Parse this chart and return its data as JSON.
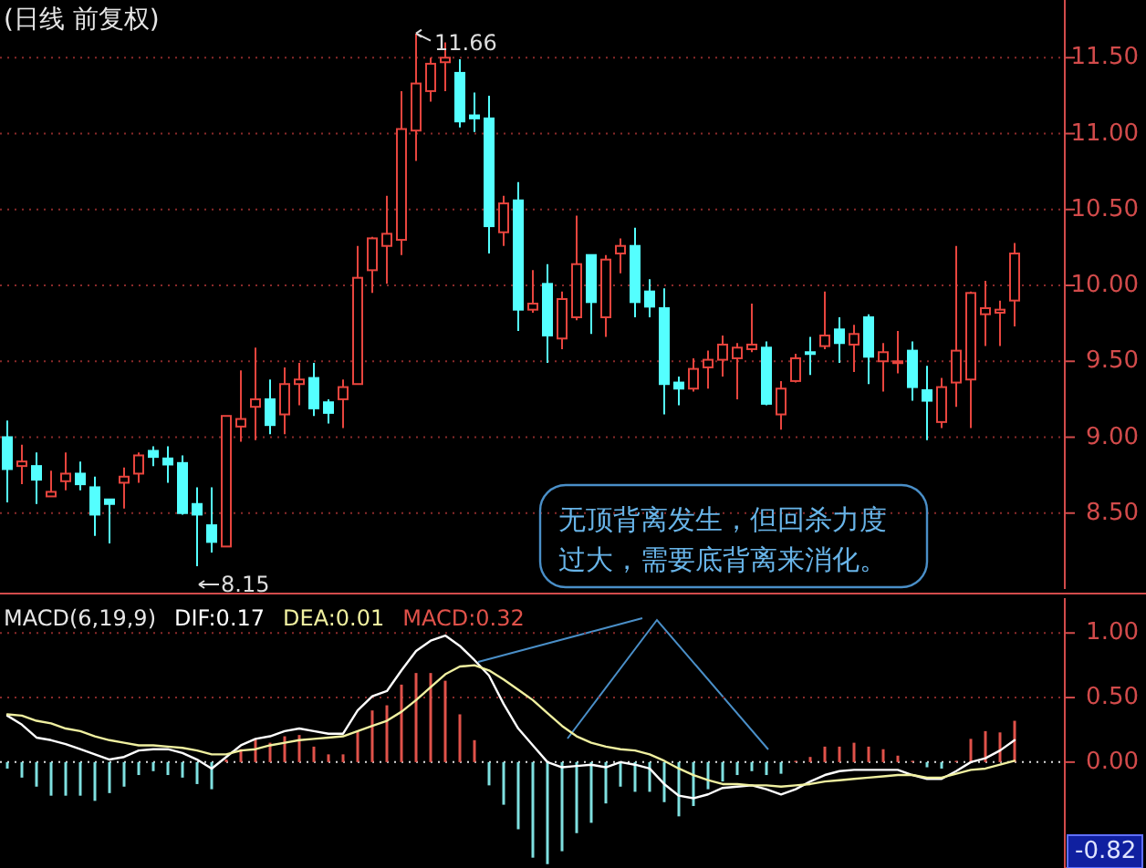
{
  "chart_data": [
    {
      "type": "candlestick",
      "title": "(日线 前复权)",
      "categories": [
        null,
        null,
        null,
        null,
        null,
        null,
        null,
        null,
        null,
        null,
        null,
        null,
        null,
        null,
        null,
        null,
        null,
        null,
        null,
        null,
        null,
        null,
        null,
        null,
        null,
        null,
        null,
        null,
        null,
        null,
        null,
        null,
        null,
        null,
        null,
        null,
        null,
        null,
        null,
        null,
        null,
        null,
        null,
        null,
        null,
        null,
        null,
        null,
        null,
        null,
        null,
        null,
        null,
        null,
        null,
        null,
        null,
        null,
        null,
        null,
        null,
        null,
        null,
        null,
        null,
        null,
        null,
        null,
        null,
        null
      ],
      "ohlc": [
        [
          9.0,
          9.11,
          8.57,
          8.79
        ],
        [
          8.81,
          8.95,
          8.69,
          8.84
        ],
        [
          8.81,
          8.9,
          8.56,
          8.72
        ],
        [
          8.61,
          8.78,
          8.61,
          8.64
        ],
        [
          8.71,
          8.9,
          8.65,
          8.76
        ],
        [
          8.76,
          8.84,
          8.65,
          8.69
        ],
        [
          8.67,
          8.74,
          8.35,
          8.49
        ],
        [
          8.59,
          8.59,
          8.3,
          8.56
        ],
        [
          8.7,
          8.8,
          8.53,
          8.74
        ],
        [
          8.76,
          8.9,
          8.7,
          8.88
        ],
        [
          8.91,
          8.94,
          8.81,
          8.87
        ],
        [
          8.86,
          8.94,
          8.7,
          8.82
        ],
        [
          8.83,
          8.88,
          8.49,
          8.5
        ],
        [
          8.56,
          8.67,
          8.15,
          8.49
        ],
        [
          8.42,
          8.67,
          8.24,
          8.31
        ],
        [
          8.28,
          9.14,
          8.28,
          9.14
        ],
        [
          9.07,
          9.44,
          8.97,
          9.12
        ],
        [
          9.2,
          9.59,
          8.98,
          9.25
        ],
        [
          9.25,
          9.38,
          9.02,
          9.08
        ],
        [
          9.15,
          9.46,
          9.02,
          9.35
        ],
        [
          9.35,
          9.49,
          9.21,
          9.38
        ],
        [
          9.39,
          9.49,
          9.14,
          9.19
        ],
        [
          9.23,
          9.25,
          9.09,
          9.16
        ],
        [
          9.25,
          9.38,
          9.06,
          9.33
        ],
        [
          9.35,
          10.26,
          9.35,
          10.05
        ],
        [
          10.1,
          10.32,
          9.95,
          10.31
        ],
        [
          10.26,
          10.59,
          10.01,
          10.34
        ],
        [
          10.3,
          11.28,
          10.2,
          11.03
        ],
        [
          11.02,
          11.66,
          10.82,
          11.33
        ],
        [
          11.28,
          11.5,
          11.21,
          11.46
        ],
        [
          11.47,
          11.6,
          11.28,
          11.5
        ],
        [
          11.4,
          11.49,
          11.04,
          11.08
        ],
        [
          11.12,
          11.27,
          11.01,
          11.1
        ],
        [
          11.1,
          11.25,
          10.21,
          10.39
        ],
        [
          10.35,
          10.59,
          10.26,
          10.54
        ],
        [
          10.56,
          10.68,
          9.7,
          9.84
        ],
        [
          9.84,
          10.1,
          9.82,
          9.88
        ],
        [
          10.01,
          10.14,
          9.49,
          9.67
        ],
        [
          9.65,
          9.96,
          9.58,
          9.91
        ],
        [
          9.79,
          10.46,
          9.77,
          10.14
        ],
        [
          10.2,
          10.2,
          9.68,
          9.89
        ],
        [
          9.79,
          10.2,
          9.66,
          10.17
        ],
        [
          10.21,
          10.31,
          10.08,
          10.26
        ],
        [
          10.26,
          10.38,
          9.79,
          9.89
        ],
        [
          9.96,
          10.04,
          9.79,
          9.86
        ],
        [
          9.85,
          9.98,
          9.15,
          9.35
        ],
        [
          9.36,
          9.4,
          9.21,
          9.32
        ],
        [
          9.32,
          9.52,
          9.3,
          9.45
        ],
        [
          9.46,
          9.57,
          9.32,
          9.51
        ],
        [
          9.51,
          9.67,
          9.4,
          9.61
        ],
        [
          9.52,
          9.62,
          9.25,
          9.59
        ],
        [
          9.58,
          9.88,
          9.56,
          9.61
        ],
        [
          9.59,
          9.63,
          9.21,
          9.22
        ],
        [
          9.15,
          9.37,
          9.05,
          9.32
        ],
        [
          9.37,
          9.55,
          9.36,
          9.52
        ],
        [
          9.56,
          9.66,
          9.41,
          9.55
        ],
        [
          9.6,
          9.96,
          9.58,
          9.67
        ],
        [
          9.71,
          9.79,
          9.49,
          9.62
        ],
        [
          9.61,
          9.74,
          9.43,
          9.68
        ],
        [
          9.79,
          9.81,
          9.35,
          9.53
        ],
        [
          9.5,
          9.62,
          9.3,
          9.56
        ],
        [
          9.49,
          9.7,
          9.42,
          9.5
        ],
        [
          9.57,
          9.63,
          9.24,
          9.33
        ],
        [
          9.31,
          9.47,
          8.98,
          9.24
        ],
        [
          9.1,
          9.39,
          9.06,
          9.33
        ],
        [
          9.36,
          10.26,
          9.2,
          9.57
        ],
        [
          9.38,
          9.96,
          9.06,
          9.95
        ],
        [
          9.81,
          10.03,
          9.6,
          9.85
        ],
        [
          9.82,
          9.9,
          9.6,
          9.84
        ],
        [
          9.9,
          10.28,
          9.73,
          10.21
        ]
      ],
      "ylim": [
        8.0,
        11.88
      ],
      "yticks": [
        {
          "value": 8.5,
          "label": "8.50"
        },
        {
          "value": 9,
          "label": "9.00"
        },
        {
          "value": 9.5,
          "label": "9.50"
        },
        {
          "value": 10,
          "label": "10.00"
        },
        {
          "value": 10.5,
          "label": "10.50"
        },
        {
          "value": 11,
          "label": "11.00"
        },
        {
          "value": 11.5,
          "label": "11.50"
        }
      ],
      "grid": "y",
      "annotations": [
        "11.66",
        "8.15",
        "无顶背离发生，但回杀力度过大，需要底背离来消化。"
      ]
    },
    {
      "type": "bar",
      "title": "MACD(6,19,9)",
      "categories": [
        null,
        null,
        null,
        null,
        null,
        null,
        null,
        null,
        null,
        null,
        null,
        null,
        null,
        null,
        null,
        null,
        null,
        null,
        null,
        null,
        null,
        null,
        null,
        null,
        null,
        null,
        null,
        null,
        null,
        null,
        null,
        null,
        null,
        null,
        null,
        null,
        null,
        null,
        null,
        null,
        null,
        null,
        null,
        null,
        null,
        null,
        null,
        null,
        null,
        null,
        null,
        null,
        null,
        null,
        null,
        null,
        null,
        null,
        null,
        null,
        null,
        null,
        null,
        null,
        null,
        null,
        null,
        null,
        null,
        null
      ],
      "series": [
        {
          "name": "DIF:0.17",
          "type": "line",
          "color": "#ffffff",
          "values": [
            0.36,
            0.29,
            0.19,
            0.17,
            0.14,
            0.1,
            0.06,
            0.02,
            0.04,
            0.09,
            0.1,
            0.1,
            0.07,
            0.02,
            -0.05,
            0.04,
            0.13,
            0.18,
            0.2,
            0.24,
            0.26,
            0.24,
            0.22,
            0.22,
            0.4,
            0.51,
            0.55,
            0.71,
            0.86,
            0.94,
            0.98,
            0.9,
            0.79,
            0.67,
            0.45,
            0.26,
            0.13,
            0.0,
            -0.04,
            -0.03,
            -0.02,
            -0.04,
            0.0,
            -0.02,
            -0.05,
            -0.17,
            -0.26,
            -0.28,
            -0.25,
            -0.2,
            -0.19,
            -0.18,
            -0.21,
            -0.25,
            -0.21,
            -0.15,
            -0.1,
            -0.07,
            -0.06,
            -0.06,
            -0.06,
            -0.06,
            -0.1,
            -0.13,
            -0.13,
            -0.07,
            0.0,
            0.03,
            0.09,
            0.17
          ]
        },
        {
          "name": "DEA:0.01",
          "type": "line",
          "color": "#f0f0a0",
          "values": [
            0.37,
            0.36,
            0.32,
            0.3,
            0.26,
            0.24,
            0.2,
            0.17,
            0.15,
            0.13,
            0.13,
            0.12,
            0.11,
            0.09,
            0.06,
            0.06,
            0.09,
            0.1,
            0.13,
            0.15,
            0.17,
            0.18,
            0.19,
            0.2,
            0.24,
            0.28,
            0.32,
            0.39,
            0.48,
            0.58,
            0.68,
            0.74,
            0.75,
            0.71,
            0.64,
            0.56,
            0.48,
            0.38,
            0.28,
            0.2,
            0.15,
            0.12,
            0.1,
            0.09,
            0.06,
            0.01,
            -0.05,
            -0.1,
            -0.14,
            -0.17,
            -0.17,
            -0.18,
            -0.18,
            -0.19,
            -0.18,
            -0.17,
            -0.15,
            -0.14,
            -0.13,
            -0.12,
            -0.11,
            -0.1,
            -0.1,
            -0.12,
            -0.12,
            -0.09,
            -0.06,
            -0.05,
            -0.02,
            0.01
          ]
        },
        {
          "name": "MACD:0.32",
          "type": "bar",
          "values": [
            -0.05,
            -0.12,
            -0.19,
            -0.26,
            -0.26,
            -0.26,
            -0.3,
            -0.24,
            -0.19,
            -0.1,
            -0.07,
            -0.1,
            -0.12,
            -0.17,
            -0.21,
            0.02,
            0.1,
            0.18,
            0.15,
            0.2,
            0.21,
            0.12,
            0.06,
            0.06,
            0.24,
            0.4,
            0.44,
            0.6,
            0.69,
            0.69,
            0.63,
            0.37,
            0.17,
            -0.18,
            -0.33,
            -0.52,
            -0.74,
            -0.79,
            -0.69,
            -0.55,
            -0.47,
            -0.32,
            -0.19,
            -0.23,
            -0.23,
            -0.31,
            -0.42,
            -0.34,
            -0.21,
            -0.15,
            -0.1,
            -0.07,
            -0.1,
            -0.09,
            0.01,
            0.04,
            0.12,
            0.12,
            0.15,
            0.12,
            0.1,
            0.05,
            0.01,
            -0.04,
            -0.05,
            0.01,
            0.18,
            0.24,
            0.23,
            0.32
          ],
          "colors": [
            "#7fe0e0",
            "#7fe0e0",
            "#7fe0e0",
            "#7fe0e0",
            "#7fe0e0",
            "#7fe0e0",
            "#7fe0e0",
            "#7fe0e0",
            "#7fe0e0",
            "#7fe0e0",
            "#7fe0e0",
            "#7fe0e0",
            "#7fe0e0",
            "#7fe0e0",
            "#7fe0e0",
            "#e0524a",
            "#e0524a",
            "#e0524a",
            "#e0524a",
            "#e0524a",
            "#e0524a",
            "#e0524a",
            "#e0524a",
            "#e0524a",
            "#e0524a",
            "#e0524a",
            "#e0524a",
            "#e0524a",
            "#e0524a",
            "#e0524a",
            "#e0524a",
            "#e0524a",
            "#e0524a",
            "#7fe0e0",
            "#7fe0e0",
            "#7fe0e0",
            "#7fe0e0",
            "#7fe0e0",
            "#7fe0e0",
            "#7fe0e0",
            "#7fe0e0",
            "#7fe0e0",
            "#7fe0e0",
            "#7fe0e0",
            "#7fe0e0",
            "#7fe0e0",
            "#7fe0e0",
            "#7fe0e0",
            "#7fe0e0",
            "#7fe0e0",
            "#7fe0e0",
            "#7fe0e0",
            "#7fe0e0",
            "#7fe0e0",
            "#e0524a",
            "#e0524a",
            "#e0524a",
            "#e0524a",
            "#e0524a",
            "#e0524a",
            "#e0524a",
            "#e0524a",
            "#e0524a",
            "#7fe0e0",
            "#7fe0e0",
            "#e0524a",
            "#e0524a",
            "#e0524a",
            "#e0524a",
            "#e0524a"
          ]
        }
      ],
      "ylim": [
        -0.82,
        1.27
      ],
      "yticks": [
        -0.82,
        {
          "value": 0,
          "label": "0.00"
        },
        {
          "value": 0.5,
          "label": "0.50"
        },
        {
          "value": 1,
          "label": "1.00"
        }
      ],
      "grid": "y",
      "legend": "top left",
      "ref_lines": [
        {
          "axis": "y",
          "value": 0,
          "color": "#dddddd",
          "line_style": "dotted"
        }
      ]
    }
  ]
}
